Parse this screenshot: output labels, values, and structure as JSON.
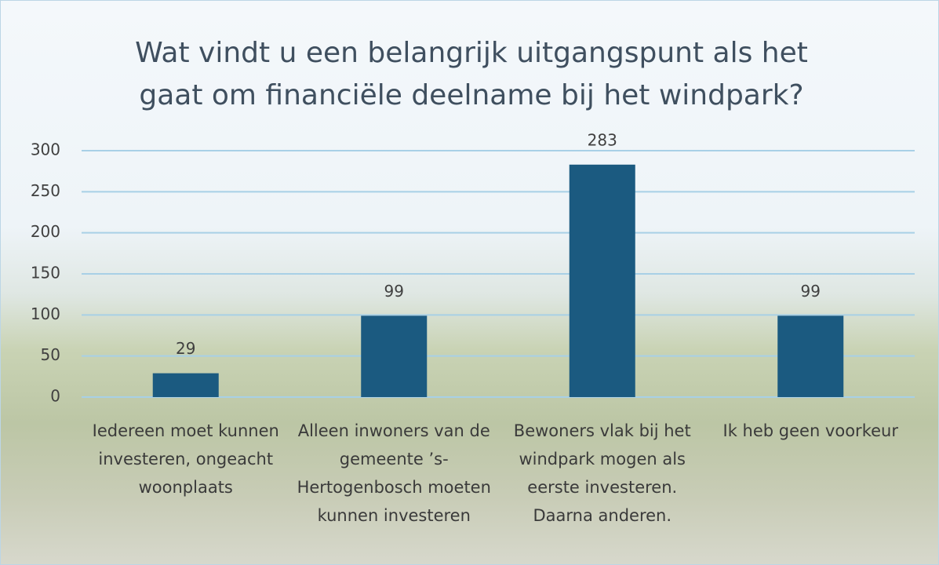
{
  "chart_data": {
    "type": "bar",
    "title": "Wat vindt u een belangrijk uitgangspunt als het gaat om financiële deelname bij het windpark?",
    "categories": [
      "Iedereen moet kunnen investeren, ongeacht woonplaats",
      "Alleen inwoners van de gemeente ’s-Hertogenbosch moeten kunnen investeren",
      "Bewoners vlak bij het windpark mogen als eerste investeren. Daarna anderen.",
      "Ik heb geen voorkeur"
    ],
    "values": [
      29,
      99,
      283,
      99
    ],
    "color": "#1b5a80",
    "ylim": [
      0,
      300
    ],
    "yticks": [
      0,
      50,
      100,
      150,
      200,
      250,
      300
    ],
    "grid": true
  }
}
